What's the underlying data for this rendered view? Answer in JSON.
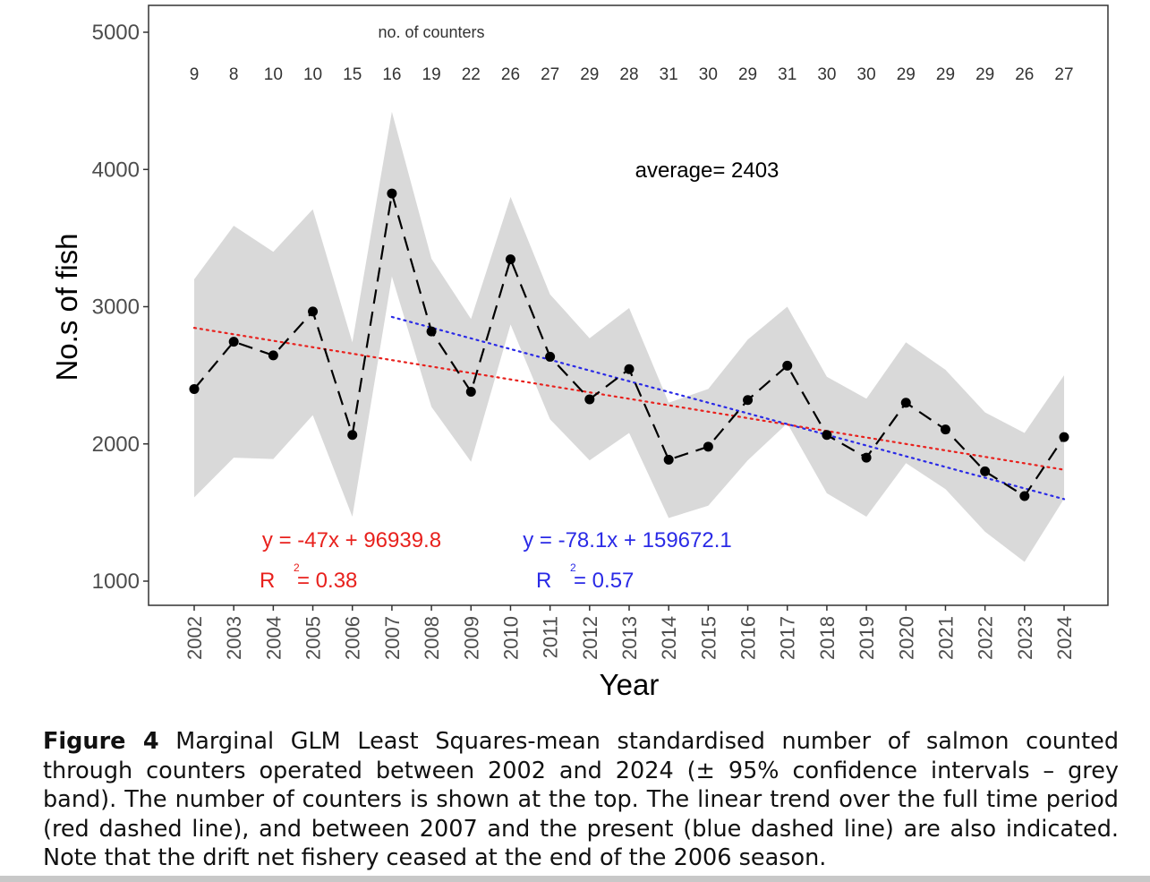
{
  "chart_data": {
    "type": "line",
    "ylabel": "No.s of fish",
    "xlabel": "Year",
    "ylim": [
      1000,
      5000
    ],
    "yticks": [
      1000,
      2000,
      3000,
      4000,
      5000
    ],
    "grid": false,
    "x": [
      2002,
      2003,
      2004,
      2005,
      2006,
      2007,
      2008,
      2009,
      2010,
      2011,
      2012,
      2013,
      2014,
      2015,
      2016,
      2017,
      2018,
      2019,
      2020,
      2021,
      2022,
      2023,
      2024
    ],
    "series": [
      {
        "values": [
          2400,
          2745,
          2645,
          2965,
          2065,
          3825,
          2820,
          2380,
          3345,
          2635,
          2325,
          2545,
          1885,
          1980,
          2320,
          2570,
          2065,
          1900,
          2300,
          2105,
          1800,
          1620,
          2050
        ],
        "lower": [
          1610,
          1900,
          1890,
          2210,
          1470,
          3220,
          2270,
          1870,
          2870,
          2180,
          1880,
          2080,
          1460,
          1550,
          1880,
          2150,
          1640,
          1470,
          1860,
          1670,
          1360,
          1140,
          1600
        ],
        "upper": [
          3200,
          3590,
          3400,
          3710,
          2740,
          4420,
          3350,
          2910,
          3800,
          3090,
          2770,
          2990,
          2300,
          2400,
          2760,
          3000,
          2490,
          2330,
          2740,
          2540,
          2230,
          2080,
          2500
        ],
        "color": "#000000",
        "style": "dashed"
      }
    ],
    "band_color": "#d9d9d9",
    "counters": {
      "label": "no. of counters",
      "values": [
        "9",
        "8",
        "10",
        "10",
        "15",
        "16",
        "19",
        "22",
        "26",
        "27",
        "29",
        "28",
        "31",
        "30",
        "29",
        "31",
        "30",
        "30",
        "29",
        "29",
        "29",
        "26",
        "27"
      ]
    },
    "average_label": "average= 2403",
    "trends": [
      {
        "from": 2002,
        "to": 2024,
        "slope": -47,
        "intercept": 96939.8,
        "equation": "y = -47x + 96939.8",
        "r_label": "R",
        "r_sup": "2",
        "r_value": "= 0.38",
        "color": "#e8211d"
      },
      {
        "from": 2007,
        "to": 2024,
        "slope": -78.1,
        "intercept": 159672.1,
        "equation": "y = -78.1x + 159672.1",
        "r_label": "R",
        "r_sup": "2",
        "r_value": "= 0.57",
        "color": "#2a2ae6"
      }
    ]
  },
  "caption": {
    "label": "Figure 4",
    "text": " Marginal GLM Least Squares-mean standardised number of salmon counted through counters operated between 2002 and 2024 (± 95% confidence intervals – grey band). The number of counters is shown at the top. The linear trend over the full time period (red dashed line), and between 2007 and the present (blue dashed line) are also indicated. Note that the drift net fishery ceased at the end of the 2006 season."
  }
}
